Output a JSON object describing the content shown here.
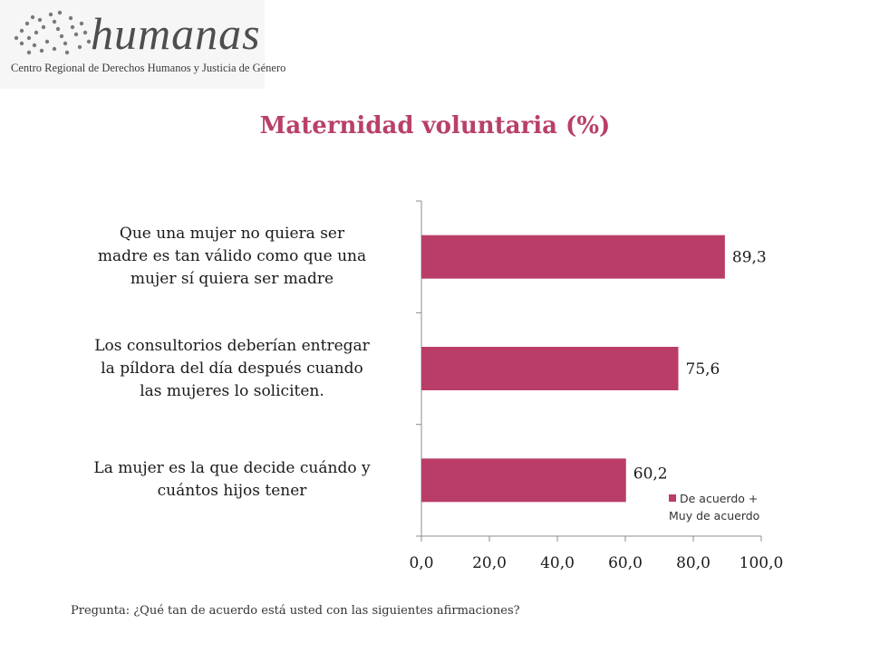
{
  "logo": {
    "name": "humanas",
    "subtitle": "Centro Regional de Derechos Humanos y Justicia de Género"
  },
  "chart_data": {
    "type": "bar",
    "orientation": "horizontal",
    "title": "Maternidad voluntaria (%)",
    "categories": [
      "Que una mujer no quiera ser madre es tan válido como que una mujer sí quiera ser madre",
      "Los consultorios deberían entregar la píldora del día después cuando las mujeres lo soliciten.",
      "La mujer es la que decide cuándo y cuántos hijos tener"
    ],
    "category_lines": [
      [
        "Que una mujer no quiera ser",
        "madre es tan válido como que una",
        "mujer sí quiera ser madre"
      ],
      [
        "Los consultorios deberían entregar",
        "la píldora del día después cuando",
        "las mujeres lo soliciten."
      ],
      [
        "La mujer es la que decide cuándo y",
        "cuántos hijos tener"
      ]
    ],
    "series": [
      {
        "name": "De acuerdo + Muy de acuerdo",
        "values": [
          89.3,
          75.6,
          60.2
        ],
        "value_labels": [
          "89,3",
          "75,6",
          "60,2"
        ],
        "color": "#b93d68"
      }
    ],
    "xlim": [
      0,
      100
    ],
    "xticks": [
      0,
      20,
      40,
      60,
      80,
      100
    ],
    "xtick_labels": [
      "0,0",
      "20,0",
      "40,0",
      "60,0",
      "80,0",
      "100,0"
    ],
    "grid": false,
    "legend": {
      "position": "bottom-right",
      "lines": [
        "De acuerdo +",
        "Muy de acuerdo"
      ]
    }
  },
  "note": "Pregunta: ¿Qué tan de acuerdo está usted con las siguientes afirmaciones?"
}
